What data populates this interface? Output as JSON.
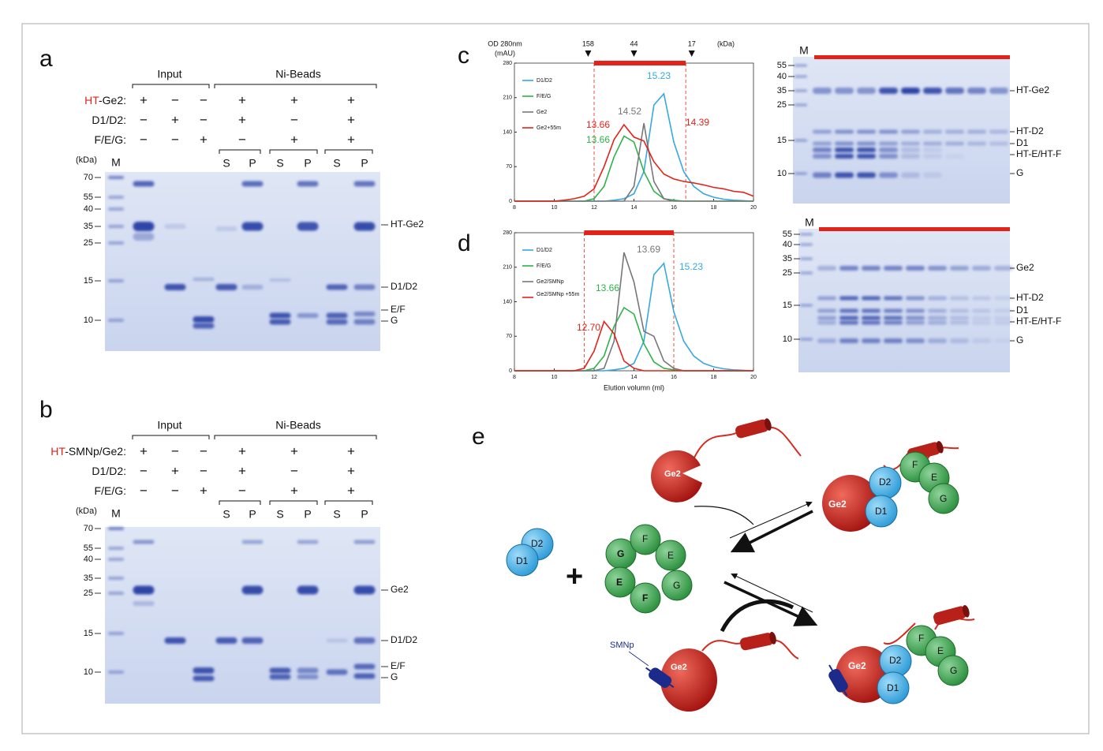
{
  "figure": {
    "a": {
      "letter": "a",
      "groups": [
        "Input",
        "Ni-Beads"
      ],
      "rows": [
        {
          "prefix": "HT",
          "label": "-Ge2:",
          "signs": [
            "+",
            "−",
            "−",
            "+",
            "+",
            "+"
          ]
        },
        {
          "label": "D1/D2:",
          "signs": [
            "−",
            "+",
            "−",
            "+",
            "−",
            "+"
          ]
        },
        {
          "label": "F/E/G:",
          "signs": [
            "−",
            "−",
            "+",
            "−",
            "+",
            "+"
          ]
        }
      ],
      "fractions": [
        "S",
        "P",
        "S",
        "P",
        "S",
        "P"
      ],
      "kda": "(kDa)",
      "lane_m": "M",
      "markers": [
        "70",
        "55",
        "40",
        "35",
        "25",
        "15",
        "10"
      ],
      "bands": [
        "HT-Ge2",
        "D1/D2",
        "E/F",
        "G"
      ]
    },
    "b": {
      "letter": "b",
      "groups": [
        "Input",
        "Ni-Beads"
      ],
      "rows": [
        {
          "prefix": "HT",
          "label": "-SMNp/Ge2:",
          "signs": [
            "+",
            "−",
            "−",
            "+",
            "+",
            "+"
          ]
        },
        {
          "label": "D1/D2:",
          "signs": [
            "−",
            "+",
            "−",
            "+",
            "−",
            "+"
          ]
        },
        {
          "label": "F/E/G:",
          "signs": [
            "−",
            "−",
            "+",
            "−",
            "+",
            "+"
          ]
        }
      ],
      "fractions": [
        "S",
        "P",
        "S",
        "P",
        "S",
        "P"
      ],
      "kda": "(kDa)",
      "lane_m": "M",
      "markers": [
        "70",
        "55",
        "40",
        "35",
        "25",
        "15",
        "10"
      ],
      "bands": [
        "Ge2",
        "D1/D2",
        "E/F",
        "G"
      ]
    },
    "c": {
      "letter": "c",
      "lane_m": "M",
      "markers": [
        "55",
        "40",
        "35",
        "25",
        "15",
        "10"
      ],
      "bands": [
        "HT-Ge2",
        "HT-D2",
        "D1",
        "HT-E/HT-F",
        "G"
      ]
    },
    "d": {
      "letter": "d",
      "lane_m": "M",
      "markers": [
        "55",
        "40",
        "35",
        "25",
        "15",
        "10"
      ],
      "bands": [
        "Ge2",
        "HT-D2",
        "D1",
        "HT-E/HT-F",
        "G"
      ]
    },
    "e": {
      "letter": "e",
      "free": [
        "D2",
        "D1"
      ],
      "plus": "+",
      "ring": [
        "G",
        "F",
        "E",
        "G",
        "F",
        "E"
      ],
      "ge2_top": "Ge2",
      "complex_top": [
        "Ge2",
        "D2",
        "D1",
        "F",
        "E",
        "G"
      ],
      "ge2_smnp": [
        "Ge2",
        "SMNp"
      ],
      "complex_bottom": [
        "Ge2",
        "D2",
        "D1",
        "F",
        "E",
        "G"
      ]
    }
  },
  "chart_data": [
    {
      "type": "line",
      "ylabel": "OD 280nm",
      "ylabel_unit": "(mAU)",
      "size_unit": "(kDa)",
      "size_markers": [
        {
          "value": 11.7,
          "label": "158"
        },
        {
          "value": 14.0,
          "label": "44"
        },
        {
          "value": 16.9,
          "label": "17"
        }
      ],
      "fraction_range": [
        12,
        16.6
      ],
      "x": [
        8,
        8.5,
        9,
        9.5,
        10,
        10.5,
        11,
        11.5,
        12,
        12.5,
        13,
        13.5,
        14,
        14.5,
        15,
        15.5,
        16,
        16.5,
        17,
        17.5,
        18,
        18.5,
        19,
        19.5,
        20
      ],
      "xlim": [
        8,
        20
      ],
      "xticks": [
        8,
        10,
        12,
        14,
        16,
        18,
        20
      ],
      "ylim": [
        0,
        280
      ],
      "yticks": [
        0,
        70,
        140,
        210,
        280
      ],
      "legend": "upper left",
      "series": [
        {
          "name": "D1/D2",
          "color": "#35a9e0",
          "values": [
            0,
            0,
            0,
            0,
            0,
            0,
            0,
            0,
            0,
            0,
            2,
            5,
            15,
            60,
            195,
            218,
            120,
            60,
            30,
            15,
            8,
            4,
            2,
            1,
            0
          ]
        },
        {
          "name": "F/E/G",
          "color": "#2db34a",
          "values": [
            0,
            0,
            0,
            0,
            0,
            0,
            0,
            0,
            5,
            30,
            90,
            132,
            120,
            60,
            20,
            5,
            2,
            0,
            0,
            0,
            0,
            0,
            0,
            0,
            0
          ]
        },
        {
          "name": "Ge2",
          "color": "#777777",
          "values": [
            0,
            0,
            0,
            0,
            0,
            0,
            0,
            0,
            0,
            0,
            0,
            0,
            30,
            158,
            40,
            5,
            0,
            0,
            0,
            0,
            0,
            0,
            0,
            0,
            0
          ]
        },
        {
          "name": "Ge2+55m",
          "color": "#e2231a",
          "values": [
            0,
            0,
            0,
            0,
            0,
            2,
            5,
            10,
            25,
            70,
            125,
            155,
            130,
            122,
            80,
            55,
            45,
            40,
            37,
            33,
            28,
            25,
            20,
            18,
            10
          ]
        }
      ],
      "annotations": [
        {
          "text": "15.23",
          "color": "#35a9e0"
        },
        {
          "text": "14.52",
          "color": "#777777"
        },
        {
          "text": "13.66",
          "color": "#e2231a"
        },
        {
          "text": "13.66",
          "color": "#2db34a"
        },
        {
          "text": "14.39",
          "color": "#e2231a"
        }
      ]
    },
    {
      "type": "line",
      "xlabel": "Elution volumn (ml)",
      "fraction_range": [
        11.5,
        16
      ],
      "x": [
        8,
        8.5,
        9,
        9.5,
        10,
        10.5,
        11,
        11.5,
        12,
        12.5,
        13,
        13.5,
        14,
        14.5,
        15,
        15.5,
        16,
        16.5,
        17,
        17.5,
        18,
        18.5,
        19,
        19.5,
        20
      ],
      "xlim": [
        8,
        20
      ],
      "xticks": [
        8,
        10,
        12,
        14,
        16,
        18,
        20
      ],
      "ylim": [
        0,
        280
      ],
      "yticks": [
        0,
        70,
        140,
        210,
        280
      ],
      "legend": "upper left",
      "series": [
        {
          "name": "D1/D2",
          "color": "#35a9e0",
          "values": [
            0,
            0,
            0,
            0,
            0,
            0,
            0,
            0,
            0,
            0,
            2,
            5,
            15,
            60,
            195,
            218,
            120,
            60,
            30,
            15,
            8,
            4,
            2,
            1,
            0
          ]
        },
        {
          "name": "F/E/G",
          "color": "#2db34a",
          "values": [
            0,
            0,
            0,
            0,
            0,
            0,
            0,
            0,
            5,
            30,
            90,
            128,
            115,
            55,
            18,
            5,
            2,
            0,
            0,
            0,
            0,
            0,
            0,
            0,
            0
          ]
        },
        {
          "name": "Ge2/SMNp",
          "color": "#777777",
          "values": [
            0,
            0,
            0,
            0,
            0,
            0,
            0,
            0,
            0,
            5,
            60,
            240,
            180,
            80,
            70,
            20,
            5,
            0,
            0,
            0,
            0,
            0,
            0,
            0,
            0
          ]
        },
        {
          "name": "Ge2/SMNp +55m",
          "color": "#e2231a",
          "values": [
            0,
            0,
            0,
            0,
            0,
            0,
            0,
            5,
            40,
            100,
            75,
            20,
            5,
            0,
            0,
            0,
            0,
            0,
            0,
            0,
            0,
            0,
            0,
            0,
            0
          ]
        }
      ],
      "annotations": [
        {
          "text": "13.69",
          "color": "#777777"
        },
        {
          "text": "15.23",
          "color": "#35a9e0"
        },
        {
          "text": "13.66",
          "color": "#2db34a"
        },
        {
          "text": "12.70",
          "color": "#e2231a"
        }
      ]
    }
  ]
}
